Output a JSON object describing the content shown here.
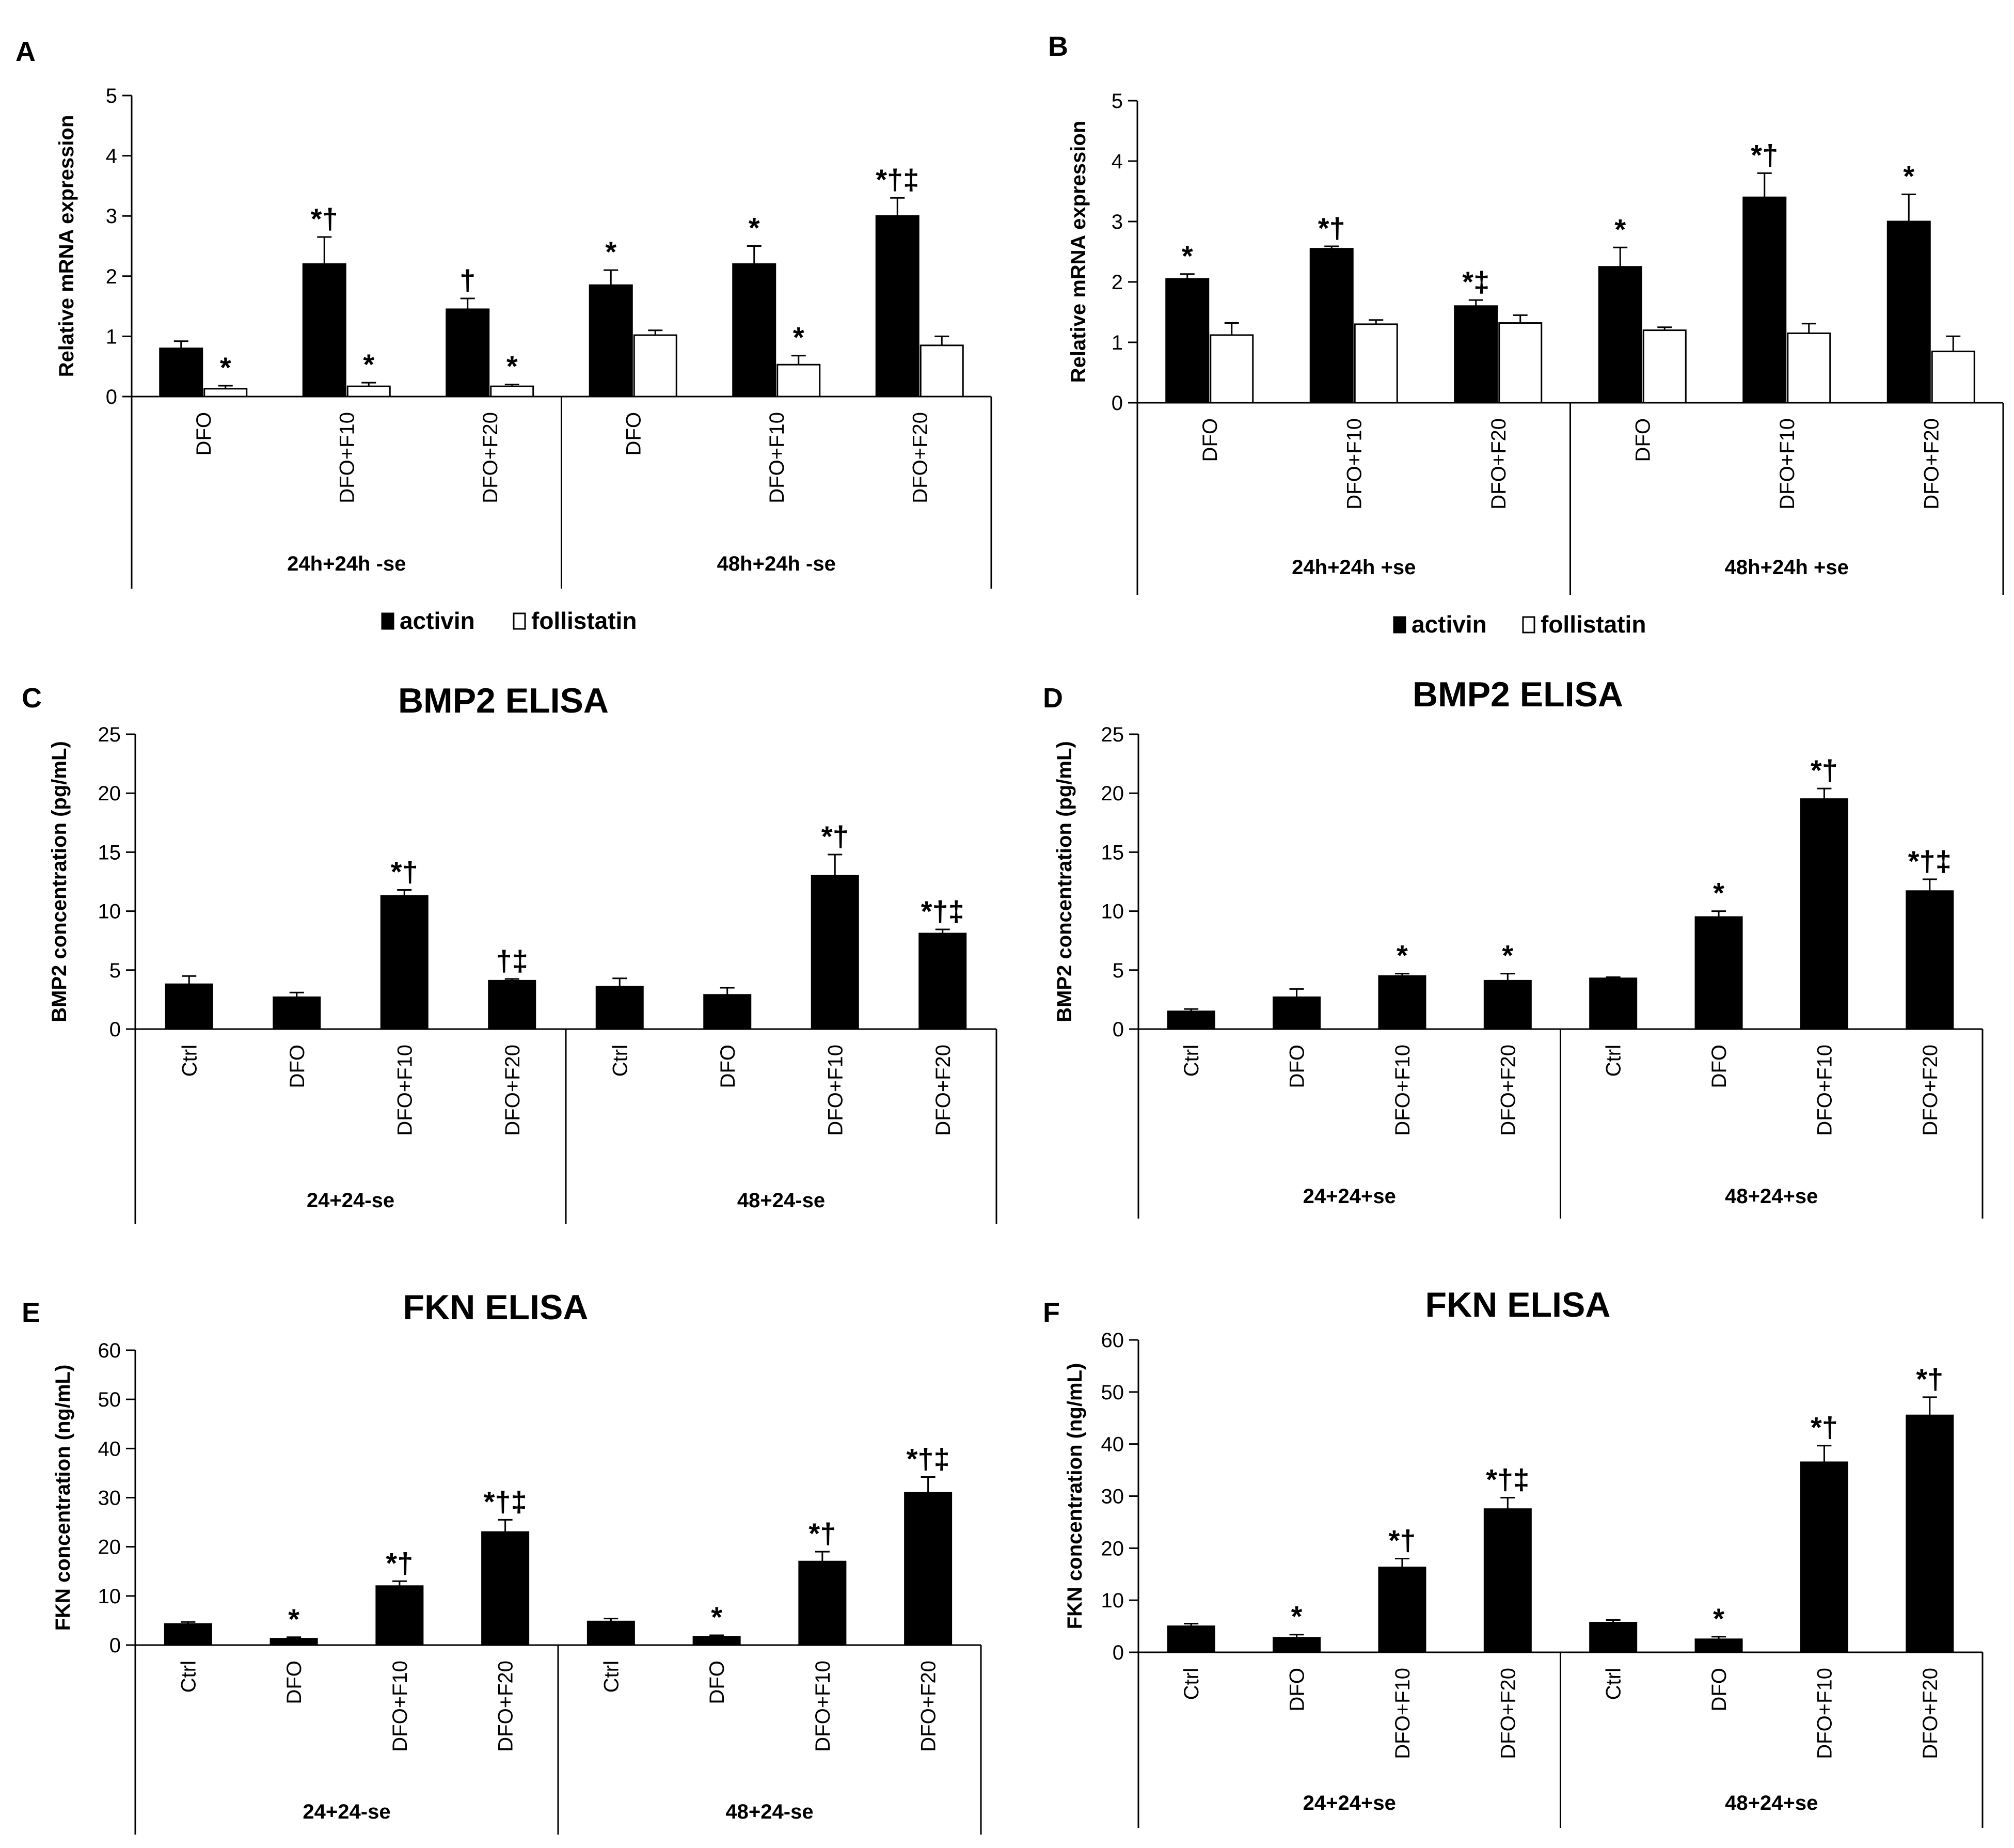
{
  "chart_data": [
    {
      "panel": "A",
      "type": "bar",
      "title": "",
      "ylabel": "Relative mRNA expression",
      "ylim": [
        0,
        5
      ],
      "yticks": [
        "0",
        "1",
        "2",
        "3",
        "4",
        "5"
      ],
      "categories": [
        "DFO",
        "DFO+F10",
        "DFO+F20",
        "DFO",
        "DFO+F10",
        "DFO+F20"
      ],
      "groups": [
        {
          "label": "24h+24h -se",
          "span": [
            0,
            2
          ]
        },
        {
          "label": "48h+24h -se",
          "span": [
            3,
            5
          ]
        }
      ],
      "series": [
        {
          "name": "activin",
          "color": "#000000",
          "values": [
            0.8,
            2.2,
            1.45,
            1.85,
            2.2,
            3.0
          ],
          "errors": [
            0.12,
            0.45,
            0.18,
            0.25,
            0.3,
            0.3
          ],
          "sig": [
            "",
            "*†",
            "†",
            "*",
            "*",
            "*†‡"
          ]
        },
        {
          "name": "follistatin",
          "color": "#ffffff",
          "values": [
            0.13,
            0.17,
            0.17,
            1.02,
            0.53,
            0.85
          ],
          "errors": [
            0.05,
            0.06,
            0.03,
            0.08,
            0.15,
            0.15
          ],
          "sig": [
            "*",
            "*",
            "*",
            "",
            "*",
            ""
          ]
        }
      ],
      "legend": [
        "activin",
        "follistatin"
      ]
    },
    {
      "panel": "B",
      "type": "bar",
      "title": "",
      "ylabel": "Relative mRNA expression",
      "ylim": [
        0,
        5
      ],
      "yticks": [
        "0",
        "1",
        "2",
        "3",
        "4",
        "5"
      ],
      "categories": [
        "DFO",
        "DFO+F10",
        "DFO+F20",
        "DFO",
        "DFO+F10",
        "DFO+F20"
      ],
      "groups": [
        {
          "label": "24h+24h +se",
          "span": [
            0,
            2
          ]
        },
        {
          "label": "48h+24h +se",
          "span": [
            3,
            5
          ]
        }
      ],
      "series": [
        {
          "name": "activin",
          "color": "#000000",
          "values": [
            2.05,
            2.55,
            1.6,
            2.25,
            3.4,
            3.0
          ],
          "errors": [
            0.08,
            0.04,
            0.1,
            0.32,
            0.4,
            0.45
          ],
          "sig": [
            "*",
            "*†",
            "*‡",
            "*",
            "*†",
            "*"
          ]
        },
        {
          "name": "follistatin",
          "color": "#ffffff",
          "values": [
            1.12,
            1.3,
            1.32,
            1.2,
            1.15,
            0.85
          ],
          "errors": [
            0.2,
            0.07,
            0.13,
            0.05,
            0.16,
            0.25
          ],
          "sig": [
            "",
            "",
            "",
            "",
            "",
            ""
          ]
        }
      ],
      "legend": [
        "activin",
        "follistatin"
      ]
    },
    {
      "panel": "C",
      "type": "bar",
      "title": "BMP2 ELISA",
      "ylabel": "BMP2 concentration (pg/mL)",
      "ylim": [
        0,
        25
      ],
      "yticks": [
        "0",
        "5",
        "10",
        "15",
        "20",
        "25"
      ],
      "categories": [
        "Ctrl",
        "DFO",
        "DFO+F10",
        "DFO+F20",
        "Ctrl",
        "DFO",
        "DFO+F10",
        "DFO+F20"
      ],
      "groups": [
        {
          "label": "24+24-se",
          "span": [
            0,
            3
          ]
        },
        {
          "label": "48+24-se",
          "span": [
            4,
            7
          ]
        }
      ],
      "series": [
        {
          "name": "BMP2",
          "color": "#000000",
          "values": [
            3.8,
            2.7,
            11.3,
            4.1,
            3.6,
            2.9,
            13.0,
            8.1
          ],
          "errors": [
            0.7,
            0.4,
            0.5,
            0.15,
            0.7,
            0.6,
            1.8,
            0.35
          ],
          "sig": [
            "",
            "",
            "*†",
            "†‡",
            "",
            "",
            "*†",
            "*†‡"
          ]
        }
      ]
    },
    {
      "panel": "D",
      "type": "bar",
      "title": "BMP2 ELISA",
      "ylabel": "BMP2 concentration (pg/mL)",
      "ylim": [
        0,
        25
      ],
      "yticks": [
        "0",
        "5",
        "10",
        "15",
        "20",
        "25"
      ],
      "categories": [
        "Ctrl",
        "DFO",
        "DFO+F10",
        "DFO+F20",
        "Ctrl",
        "DFO",
        "DFO+F10",
        "DFO+F20"
      ],
      "groups": [
        {
          "label": "24+24+se",
          "span": [
            0,
            3
          ]
        },
        {
          "label": "48+24+se",
          "span": [
            4,
            7
          ]
        }
      ],
      "series": [
        {
          "name": "BMP2",
          "color": "#000000",
          "values": [
            1.5,
            2.7,
            4.5,
            4.1,
            4.3,
            9.5,
            19.5,
            11.7
          ],
          "errors": [
            0.2,
            0.7,
            0.2,
            0.6,
            0.1,
            0.5,
            0.9,
            1.0
          ],
          "sig": [
            "",
            "",
            "*",
            "*",
            "",
            "*",
            "*†",
            "*†‡"
          ]
        }
      ]
    },
    {
      "panel": "E",
      "type": "bar",
      "title": "FKN ELISA",
      "ylabel": "FKN concentration (ng/mL)",
      "ylim": [
        0,
        60
      ],
      "yticks": [
        "0",
        "10",
        "20",
        "30",
        "40",
        "50",
        "60"
      ],
      "categories": [
        "Ctrl",
        "DFO",
        "DFO+F10",
        "DFO+F20",
        "Ctrl",
        "DFO",
        "DFO+F10",
        "DFO+F20"
      ],
      "groups": [
        {
          "label": "24+24-se",
          "span": [
            0,
            3
          ]
        },
        {
          "label": "48+24-se",
          "span": [
            4,
            7
          ]
        }
      ],
      "series": [
        {
          "name": "FKN",
          "color": "#000000",
          "values": [
            4.3,
            1.3,
            12.0,
            23.0,
            4.8,
            1.7,
            17.0,
            31.0
          ],
          "errors": [
            0.4,
            0.3,
            1.0,
            2.5,
            0.6,
            0.3,
            2.0,
            3.2
          ],
          "sig": [
            "",
            "*",
            "*†",
            "*†‡",
            "",
            "*",
            "*†",
            "*†‡"
          ]
        }
      ]
    },
    {
      "panel": "F",
      "type": "bar",
      "title": "FKN ELISA",
      "ylabel": "FKN concentration (ng/mL)",
      "ylim": [
        0,
        60
      ],
      "yticks": [
        "0",
        "10",
        "20",
        "30",
        "40",
        "50",
        "60"
      ],
      "categories": [
        "Ctrl",
        "DFO",
        "DFO+F10",
        "DFO+F20",
        "Ctrl",
        "DFO",
        "DFO+F10",
        "DFO+F20"
      ],
      "groups": [
        {
          "label": "24+24+se",
          "span": [
            0,
            3
          ]
        },
        {
          "label": "48+24+se",
          "span": [
            4,
            7
          ]
        }
      ],
      "series": [
        {
          "name": "FKN",
          "color": "#000000",
          "values": [
            5.0,
            2.8,
            16.3,
            27.5,
            5.7,
            2.5,
            36.5,
            45.5
          ],
          "errors": [
            0.5,
            0.6,
            1.7,
            2.2,
            0.5,
            0.5,
            3.2,
            3.5
          ],
          "sig": [
            "",
            "*",
            "*†",
            "*†‡",
            "",
            "*",
            "*†",
            "*†"
          ]
        }
      ]
    }
  ]
}
